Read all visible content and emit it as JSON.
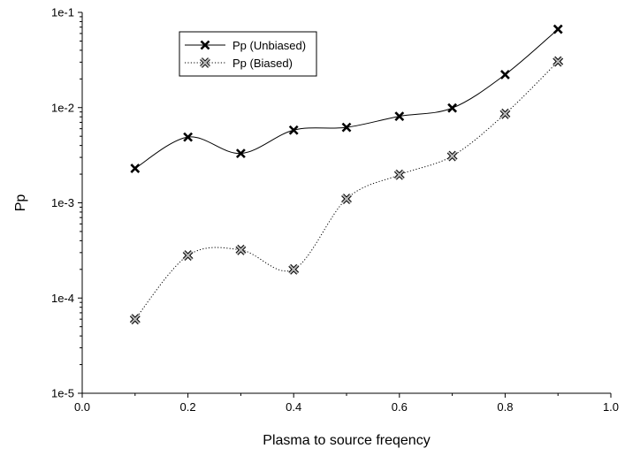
{
  "chart_data": {
    "type": "line",
    "xlabel": "Plasma to source freqency",
    "ylabel": "Pp",
    "xlim": [
      0.0,
      1.0
    ],
    "ylim": [
      1e-05,
      0.1
    ],
    "yscale": "log",
    "x_ticks": [
      0.0,
      0.2,
      0.4,
      0.6,
      0.8,
      1.0
    ],
    "x_tick_labels": [
      "0.0",
      "0.2",
      "0.4",
      "0.6",
      "0.8",
      "1.0"
    ],
    "y_ticks": [
      1e-05,
      0.0001,
      0.001,
      0.01,
      0.1
    ],
    "y_tick_labels": [
      "1e-5",
      "1e-4",
      "1e-3",
      "1e-2",
      "1e-1"
    ],
    "grid": false,
    "legend_position": "top-left",
    "x": [
      0.1,
      0.2,
      0.3,
      0.4,
      0.5,
      0.6,
      0.7,
      0.8,
      0.9
    ],
    "series": [
      {
        "name": "Pp (Unbiased)",
        "values": [
          0.0023,
          0.0049,
          0.0033,
          0.0058,
          0.0062,
          0.0081,
          0.0099,
          0.0222,
          0.0665
        ],
        "color": "#000000",
        "line_style": "solid",
        "marker": "x-mark"
      },
      {
        "name": "Pp (Biased)",
        "values": [
          6e-05,
          0.00028,
          0.00032,
          0.0002,
          0.0011,
          0.00197,
          0.0031,
          0.0086,
          0.0305
        ],
        "color": "#555555",
        "line_style": "dotted",
        "marker": "x-mark-grey"
      }
    ]
  }
}
